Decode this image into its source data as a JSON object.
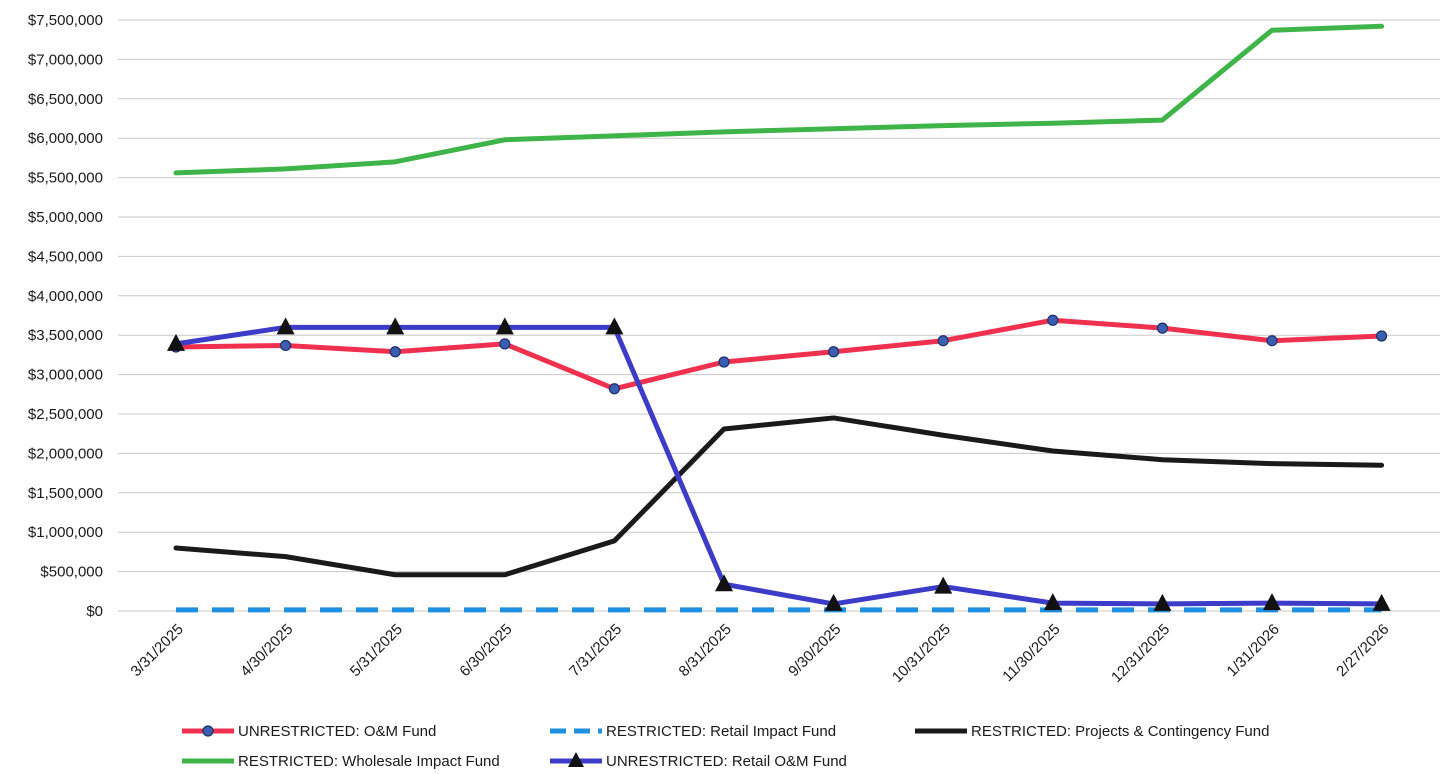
{
  "chart_data": {
    "type": "line",
    "title": "",
    "xlabel": "",
    "ylabel": "",
    "categories": [
      "3/31/2025",
      "4/30/2025",
      "5/31/2025",
      "6/30/2025",
      "7/31/2025",
      "8/31/2025",
      "9/30/2025",
      "10/31/2025",
      "11/30/2025",
      "12/31/2025",
      "1/31/2026",
      "2/27/2026"
    ],
    "ylim": [
      0,
      7500000
    ],
    "yticks": [
      0,
      500000,
      1000000,
      1500000,
      2000000,
      2500000,
      3000000,
      3500000,
      4000000,
      4500000,
      5000000,
      5500000,
      6000000,
      6500000,
      7000000,
      7500000
    ],
    "ytick_labels": [
      "$0",
      "$500,000",
      "$1,000,000",
      "$1,500,000",
      "$2,000,000",
      "$2,500,000",
      "$3,000,000",
      "$3,500,000",
      "$4,000,000",
      "$4,500,000",
      "$5,000,000",
      "$5,500,000",
      "$6,000,000",
      "$6,500,000",
      "$7,000,000",
      "$7,500,000"
    ],
    "grid": true,
    "legend_position": "bottom",
    "series": [
      {
        "name": "UNRESTRICTED: O&M Fund",
        "color": "#f0304f",
        "marker": "circle",
        "dash": "solid",
        "values": [
          3350000,
          3370000,
          3290000,
          3390000,
          2820000,
          3160000,
          3290000,
          3430000,
          3690000,
          3590000,
          3430000,
          3490000
        ]
      },
      {
        "name": "RESTRICTED: Retail Impact Fund",
        "color": "#1f8fe0",
        "marker": "none",
        "dash": "dashed",
        "values": [
          15000,
          15000,
          15000,
          15000,
          15000,
          15000,
          15000,
          15000,
          15000,
          15000,
          15000,
          15000
        ]
      },
      {
        "name": "RESTRICTED: Projects & Contingency Fund",
        "color": "#1a1a1a",
        "marker": "none",
        "dash": "solid",
        "values": [
          800000,
          690000,
          460000,
          460000,
          890000,
          2310000,
          2450000,
          2230000,
          2030000,
          1920000,
          1870000,
          1850000
        ]
      },
      {
        "name": "RESTRICTED: Wholesale Impact Fund",
        "color": "#3fb449",
        "marker": "none",
        "dash": "solid",
        "values": [
          5560000,
          5610000,
          5700000,
          5980000,
          6030000,
          6080000,
          6120000,
          6160000,
          6190000,
          6230000,
          7370000,
          7420000
        ]
      },
      {
        "name": "UNRESTRICTED: Retail O&M Fund",
        "color": "#3c3cc8",
        "marker": "triangle",
        "dash": "solid",
        "values": [
          3390000,
          3600000,
          3600000,
          3600000,
          3600000,
          340000,
          90000,
          310000,
          100000,
          90000,
          100000,
          90000
        ]
      }
    ]
  }
}
